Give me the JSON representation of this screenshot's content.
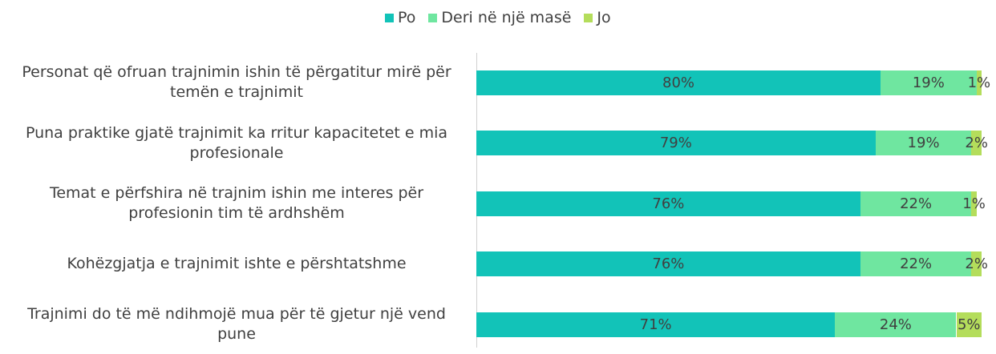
{
  "chart_data": {
    "type": "stacked-barh",
    "categories": [
      "Personat që ofruan trajnimin ishin të përgatitur mirë për temën e trajnimit",
      "Puna praktike gjatë trajnimit ka rritur kapacitetet e mia profesionale",
      "Temat e përfshira në trajnim ishin me interes për profesionin tim të ardhshëm",
      "Kohëzgjatja e trajnimit ishte e përshtatshme",
      "Trajnimi do të më ndihmojë mua për të gjetur një vend pune"
    ],
    "series": [
      {
        "name": "Po",
        "color": "#12c3b8",
        "values": [
          80,
          79,
          76,
          76,
          71
        ],
        "value_labels": [
          "80%",
          "79%",
          "76%",
          "76%",
          "71%"
        ]
      },
      {
        "name": "Deri në një masë",
        "color": "#6fe6a0",
        "values": [
          19,
          19,
          22,
          22,
          24
        ],
        "value_labels": [
          "19%",
          "19%",
          "22%",
          "22%",
          "24%"
        ]
      },
      {
        "name": "Jo",
        "color": "#b4dd5b",
        "values": [
          1,
          2,
          1,
          2,
          5
        ],
        "value_labels": [
          "1%",
          "2%",
          "1%",
          "2%",
          "5%"
        ]
      }
    ],
    "xlim": [
      0,
      100
    ],
    "legend": "top"
  }
}
